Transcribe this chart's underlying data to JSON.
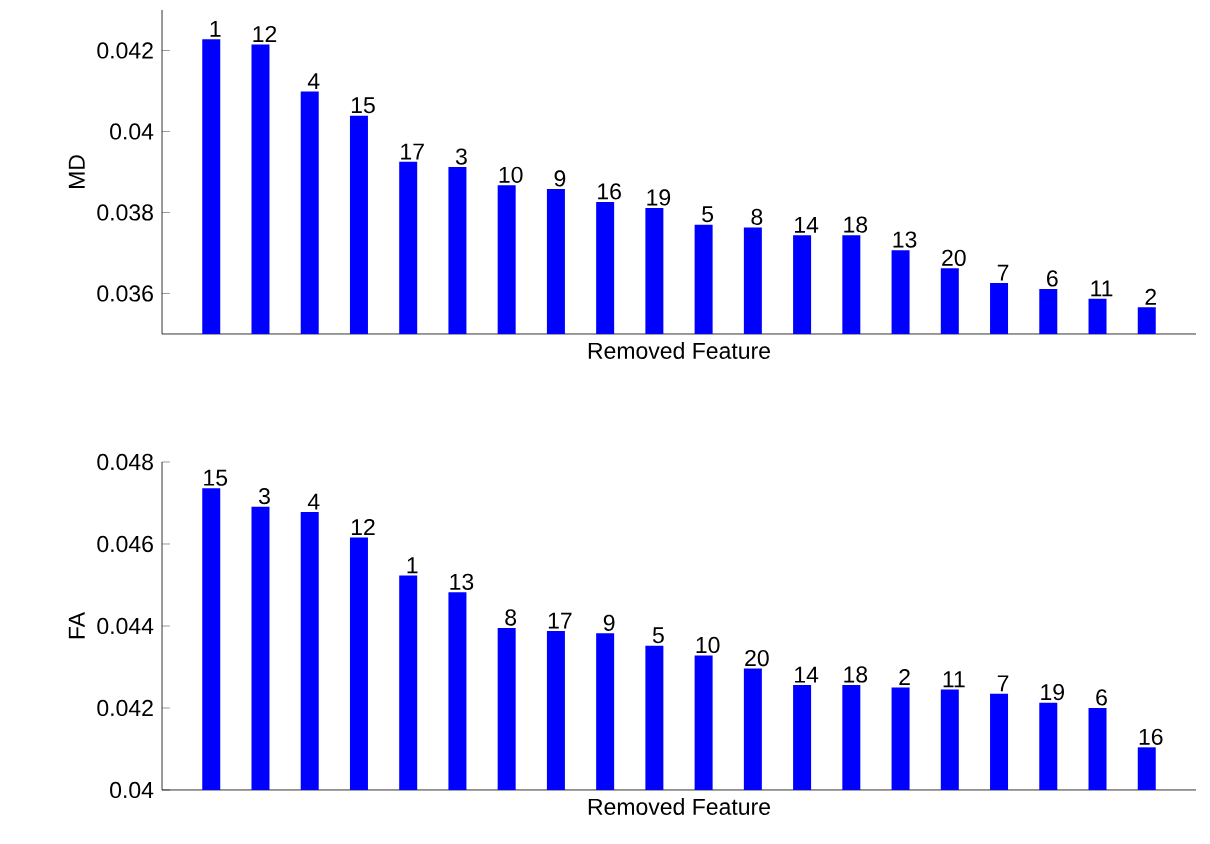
{
  "chart_data": [
    {
      "type": "bar",
      "ylabel": "MD",
      "xlabel": "Removed Feature",
      "color": "#0000ff",
      "categories": [
        "1",
        "12",
        "4",
        "15",
        "17",
        "3",
        "10",
        "9",
        "16",
        "19",
        "5",
        "8",
        "14",
        "18",
        "13",
        "20",
        "7",
        "6",
        "11",
        "2"
      ],
      "values": [
        0.04228,
        0.04215,
        0.04099,
        0.04039,
        0.03925,
        0.03912,
        0.03867,
        0.03858,
        0.03826,
        0.03811,
        0.0377,
        0.03763,
        0.03744,
        0.03744,
        0.03707,
        0.03662,
        0.03626,
        0.03611,
        0.03587,
        0.03566
      ],
      "ylim": [
        0.035,
        0.043
      ],
      "yticks": [
        0.036,
        0.038,
        0.04,
        0.042
      ],
      "tick_labels": "y"
    },
    {
      "type": "bar",
      "ylabel": "FA",
      "xlabel": "Removed Feature",
      "color": "#0000ff",
      "categories": [
        "15",
        "3",
        "4",
        "12",
        "1",
        "13",
        "8",
        "17",
        "9",
        "5",
        "10",
        "20",
        "14",
        "18",
        "2",
        "11",
        "7",
        "19",
        "6",
        "16"
      ],
      "values": [
        0.04736,
        0.04691,
        0.04678,
        0.04616,
        0.04523,
        0.04482,
        0.04395,
        0.04388,
        0.04382,
        0.04352,
        0.04328,
        0.04296,
        0.04256,
        0.04256,
        0.0425,
        0.04245,
        0.04235,
        0.04213,
        0.042,
        0.04104
      ],
      "ylim": [
        0.04,
        0.048
      ],
      "yticks": [
        0.04,
        0.042,
        0.044,
        0.046,
        0.048
      ],
      "tick_labels": "y"
    }
  ]
}
